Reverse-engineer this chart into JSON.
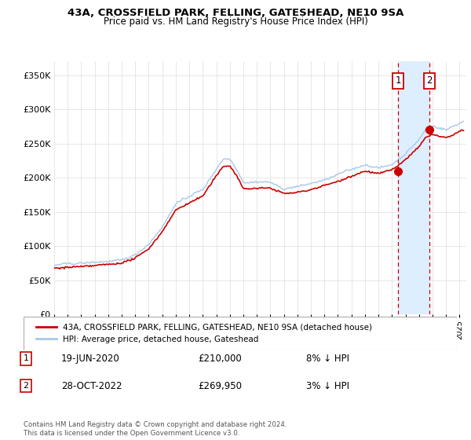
{
  "title": "43A, CROSSFIELD PARK, FELLING, GATESHEAD, NE10 9SA",
  "subtitle": "Price paid vs. HM Land Registry's House Price Index (HPI)",
  "legend_line1": "43A, CROSSFIELD PARK, FELLING, GATESHEAD, NE10 9SA (detached house)",
  "legend_line2": "HPI: Average price, detached house, Gateshead",
  "transaction1_date": "19-JUN-2020",
  "transaction1_price": "£210,000",
  "transaction1_hpi": "8% ↓ HPI",
  "transaction2_date": "28-OCT-2022",
  "transaction2_price": "£269,950",
  "transaction2_hpi": "3% ↓ HPI",
  "footer": "Contains HM Land Registry data © Crown copyright and database right 2024.\nThis data is licensed under the Open Government Licence v3.0.",
  "hpi_color": "#a8c8e8",
  "price_color": "#cc0000",
  "highlight_color": "#ddeeff",
  "ytick_labels": [
    "£0",
    "£50K",
    "£100K",
    "£150K",
    "£200K",
    "£250K",
    "£300K",
    "£350K"
  ],
  "ytick_vals": [
    0,
    50000,
    100000,
    150000,
    200000,
    250000,
    300000,
    350000
  ],
  "ylim": [
    0,
    370000
  ],
  "xlim_min": 1995.0,
  "xlim_max": 2025.5,
  "t1_x": 2020.46,
  "t1_y": 210000,
  "t2_x": 2022.79,
  "t2_y": 269950
}
